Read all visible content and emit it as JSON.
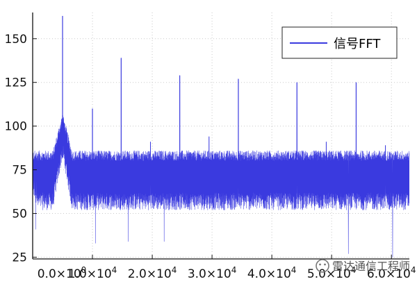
{
  "chart_data": {
    "type": "line",
    "title": "",
    "xlabel": "",
    "ylabel": "",
    "xlim": [
      0,
      63000
    ],
    "ylim": [
      24,
      165
    ],
    "grid": true,
    "legend_position": "top-right",
    "x_ticks": [
      {
        "value": 0,
        "base": "0.0×10",
        "exp": "0"
      },
      {
        "value": 10000,
        "base": "1.0×10",
        "exp": "4"
      },
      {
        "value": 20000,
        "base": "2.0×10",
        "exp": "4"
      },
      {
        "value": 30000,
        "base": "3.0×10",
        "exp": "4"
      },
      {
        "value": 40000,
        "base": "4.0×10",
        "exp": "4"
      },
      {
        "value": 50000,
        "base": "5.0×10",
        "exp": "4"
      },
      {
        "value": 60000,
        "base": "6.0×10",
        "exp": "4"
      }
    ],
    "y_ticks": [
      {
        "value": 25,
        "label": "25"
      },
      {
        "value": 50,
        "label": "50"
      },
      {
        "value": 75,
        "label": "75"
      },
      {
        "value": 100,
        "label": "100"
      },
      {
        "value": 125,
        "label": "125"
      },
      {
        "value": 150,
        "label": "150"
      }
    ],
    "series": [
      {
        "name": "信号FFT",
        "color": "#3a3adf",
        "noise_band": {
          "low": 52,
          "high": 82
        },
        "floor_start": 70,
        "peaks": [
          {
            "x": 5000,
            "y": 163
          },
          {
            "x": 10000,
            "y": 110
          },
          {
            "x": 14800,
            "y": 139
          },
          {
            "x": 24600,
            "y": 129
          },
          {
            "x": 34400,
            "y": 127
          },
          {
            "x": 44200,
            "y": 125
          },
          {
            "x": 54100,
            "y": 125
          }
        ],
        "minor_peaks": [
          {
            "x": 19700,
            "y": 91
          },
          {
            "x": 29500,
            "y": 94
          },
          {
            "x": 39300,
            "y": 85
          },
          {
            "x": 49100,
            "y": 91
          },
          {
            "x": 59000,
            "y": 89
          }
        ],
        "deep_dips": [
          {
            "x": 500,
            "y": 41
          },
          {
            "x": 10500,
            "y": 33
          },
          {
            "x": 16000,
            "y": 34
          },
          {
            "x": 22000,
            "y": 34
          },
          {
            "x": 52800,
            "y": 27
          },
          {
            "x": 60200,
            "y": 25
          }
        ]
      }
    ]
  },
  "watermark": {
    "text": "雷达通信工程师",
    "icon": "wechat-icon"
  }
}
